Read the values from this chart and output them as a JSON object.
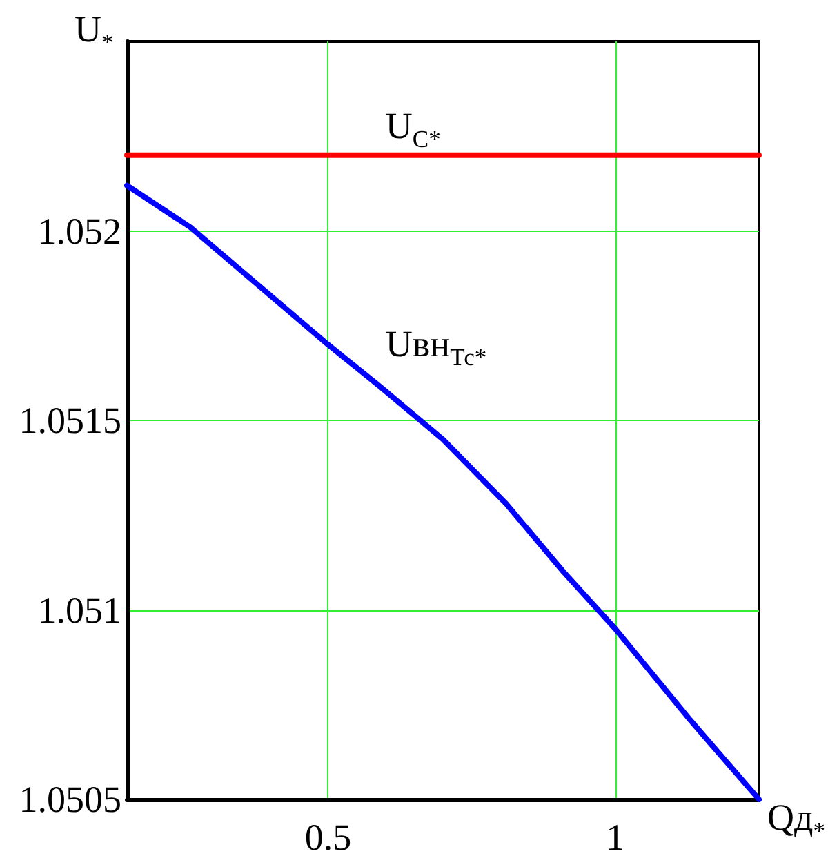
{
  "chart_data": {
    "type": "line",
    "xlabel": "Qд$_{*}$",
    "ylabel": "U$_{*}$",
    "xlim": [
      0.15,
      1.25
    ],
    "xticks": [
      0.5,
      1
    ],
    "ylim": [
      1.0505,
      1.0525
    ],
    "yticks": [
      1.0505,
      1.051,
      1.0515,
      1.052
    ],
    "grid": true,
    "marker": "none",
    "line_style": "solid",
    "series": [
      {
        "name": "U$_{C*}$",
        "color": "#ff0000",
        "x": [
          0.15,
          1.25
        ],
        "values": [
          1.0522,
          1.0522
        ]
      },
      {
        "name": "Uвн$_{Тс*}$",
        "color": "#0000ff",
        "x": [
          0.15,
          0.26,
          0.5,
          0.59,
          0.7,
          0.81,
          0.91,
          0.97,
          1.0,
          1.13,
          1.25
        ],
        "values": [
          1.05212,
          1.05201,
          1.0517,
          1.05159,
          1.05145,
          1.05128,
          1.0511,
          1.051,
          1.05095,
          1.05071,
          1.0505
        ]
      }
    ]
  }
}
